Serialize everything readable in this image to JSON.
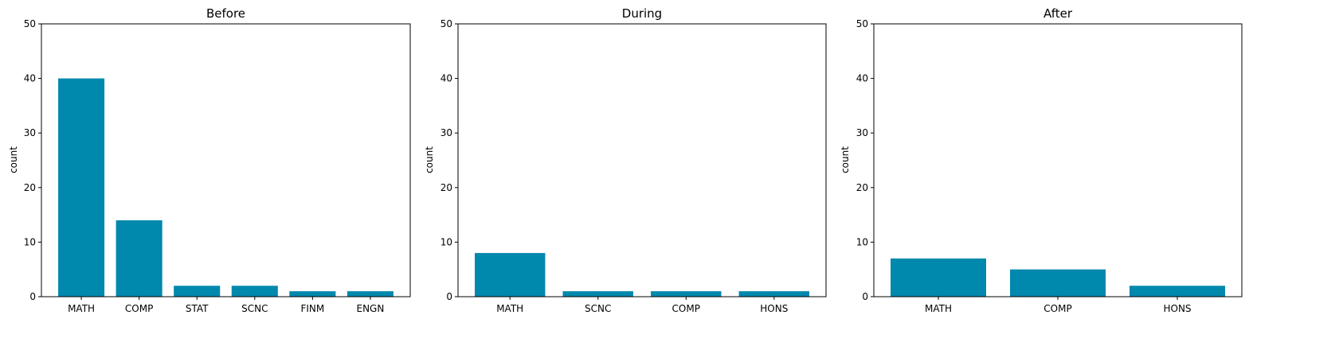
{
  "chart_data": [
    {
      "type": "bar",
      "title": "Before",
      "xlabel": "",
      "ylabel": "count",
      "ylim": [
        0,
        50
      ],
      "yticks": [
        0,
        10,
        20,
        30,
        40,
        50
      ],
      "categories": [
        "MATH",
        "COMP",
        "STAT",
        "SCNC",
        "FINM",
        "ENGN"
      ],
      "values": [
        40,
        14,
        2,
        2,
        1,
        1
      ],
      "grid": false,
      "bar_color": "#0088ad"
    },
    {
      "type": "bar",
      "title": "During",
      "xlabel": "",
      "ylabel": "count",
      "ylim": [
        0,
        50
      ],
      "yticks": [
        0,
        10,
        20,
        30,
        40,
        50
      ],
      "categories": [
        "MATH",
        "SCNC",
        "COMP",
        "HONS"
      ],
      "values": [
        8,
        1,
        1,
        1
      ],
      "grid": false,
      "bar_color": "#0088ad"
    },
    {
      "type": "bar",
      "title": "After",
      "xlabel": "",
      "ylabel": "count",
      "ylim": [
        0,
        50
      ],
      "yticks": [
        0,
        10,
        20,
        30,
        40,
        50
      ],
      "categories": [
        "MATH",
        "COMP",
        "HONS"
      ],
      "values": [
        7,
        5,
        2
      ],
      "grid": false,
      "bar_color": "#0088ad"
    }
  ]
}
